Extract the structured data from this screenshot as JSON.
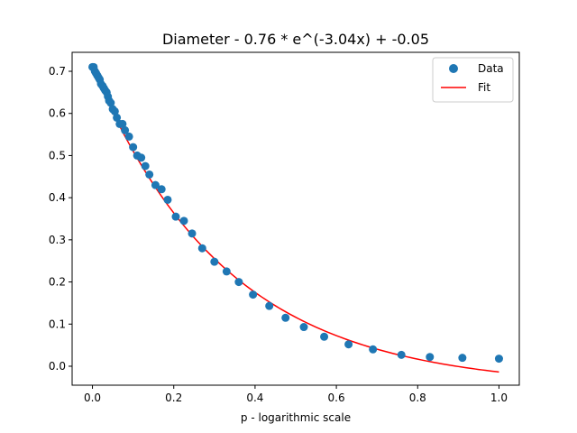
{
  "chart_data": {
    "type": "scatter",
    "title": "Diameter - 0.76 * e^(-3.04x) + -0.05",
    "xlabel": "p - logarithmic scale",
    "ylabel": "",
    "xlim": [
      -0.05,
      1.05
    ],
    "ylim": [
      -0.045,
      0.745
    ],
    "x_ticks": [
      0.0,
      0.2,
      0.4,
      0.6,
      0.8,
      1.0
    ],
    "x_tick_labels": [
      "0.0",
      "0.2",
      "0.4",
      "0.6",
      "0.8",
      "1.0"
    ],
    "y_ticks": [
      0.0,
      0.1,
      0.2,
      0.3,
      0.4,
      0.5,
      0.6,
      0.7
    ],
    "y_tick_labels": [
      "0.0",
      "0.1",
      "0.2",
      "0.3",
      "0.4",
      "0.5",
      "0.6",
      "0.7"
    ],
    "grid": false,
    "legend_position": "top-right",
    "series": [
      {
        "name": "Data",
        "kind": "scatter",
        "color": "#1f77b4",
        "points": [
          [
            0.0,
            0.71
          ],
          [
            0.003,
            0.71
          ],
          [
            0.006,
            0.7
          ],
          [
            0.009,
            0.695
          ],
          [
            0.012,
            0.69
          ],
          [
            0.015,
            0.685
          ],
          [
            0.018,
            0.68
          ],
          [
            0.021,
            0.67
          ],
          [
            0.025,
            0.665
          ],
          [
            0.028,
            0.66
          ],
          [
            0.031,
            0.655
          ],
          [
            0.035,
            0.65
          ],
          [
            0.038,
            0.64
          ],
          [
            0.041,
            0.63
          ],
          [
            0.045,
            0.625
          ],
          [
            0.05,
            0.61
          ],
          [
            0.055,
            0.605
          ],
          [
            0.06,
            0.59
          ],
          [
            0.067,
            0.575
          ],
          [
            0.074,
            0.575
          ],
          [
            0.08,
            0.56
          ],
          [
            0.09,
            0.545
          ],
          [
            0.1,
            0.52
          ],
          [
            0.11,
            0.5
          ],
          [
            0.12,
            0.495
          ],
          [
            0.13,
            0.475
          ],
          [
            0.14,
            0.455
          ],
          [
            0.155,
            0.43
          ],
          [
            0.17,
            0.42
          ],
          [
            0.185,
            0.395
          ],
          [
            0.205,
            0.355
          ],
          [
            0.225,
            0.345
          ],
          [
            0.245,
            0.315
          ],
          [
            0.27,
            0.28
          ],
          [
            0.3,
            0.248
          ],
          [
            0.33,
            0.225
          ],
          [
            0.36,
            0.2
          ],
          [
            0.395,
            0.17
          ],
          [
            0.435,
            0.143
          ],
          [
            0.475,
            0.115
          ],
          [
            0.52,
            0.093
          ],
          [
            0.57,
            0.07
          ],
          [
            0.63,
            0.052
          ],
          [
            0.69,
            0.04
          ],
          [
            0.76,
            0.027
          ],
          [
            0.83,
            0.022
          ],
          [
            0.91,
            0.02
          ],
          [
            1.0,
            0.018
          ]
        ]
      },
      {
        "name": "Fit",
        "kind": "line",
        "color": "#ff0000",
        "formula": {
          "a": 0.76,
          "b": -3.04,
          "c": -0.05
        },
        "x_range": [
          0.0,
          1.0
        ]
      }
    ]
  }
}
